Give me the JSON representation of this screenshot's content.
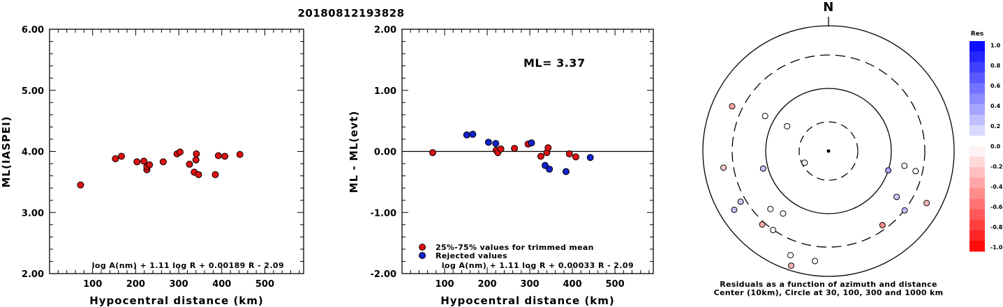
{
  "title": "20180812193828",
  "chart_data": [
    {
      "type": "scatter",
      "xlabel": "Hypocentral distance (km)",
      "ylabel": "ML(IASPEI)",
      "xlim": [
        0,
        590
      ],
      "ylim": [
        2.0,
        6.0
      ],
      "x_ticks": [
        "100",
        "200",
        "300",
        "400",
        "500"
      ],
      "y_ticks": [
        "2.00",
        "3.00",
        "4.00",
        "5.00",
        "6.00"
      ],
      "formula": "log A(nm) + 1.11 log R + 0.00189 R - 2.09",
      "points": [
        {
          "x": 72,
          "y": 3.45
        },
        {
          "x": 153,
          "y": 3.88
        },
        {
          "x": 167,
          "y": 3.92
        },
        {
          "x": 203,
          "y": 3.83
        },
        {
          "x": 219,
          "y": 3.84
        },
        {
          "x": 226,
          "y": 3.7
        },
        {
          "x": 226,
          "y": 3.75
        },
        {
          "x": 232,
          "y": 3.78
        },
        {
          "x": 264,
          "y": 3.83
        },
        {
          "x": 296,
          "y": 3.96
        },
        {
          "x": 303,
          "y": 3.99
        },
        {
          "x": 325,
          "y": 3.79
        },
        {
          "x": 336,
          "y": 3.66
        },
        {
          "x": 340,
          "y": 3.86
        },
        {
          "x": 341,
          "y": 3.96
        },
        {
          "x": 346,
          "y": 3.62
        },
        {
          "x": 385,
          "y": 3.62
        },
        {
          "x": 392,
          "y": 3.93
        },
        {
          "x": 407,
          "y": 3.92
        },
        {
          "x": 442,
          "y": 3.95
        }
      ]
    },
    {
      "type": "scatter",
      "xlabel": "Hypocentral distance (km)",
      "ylabel": "ML - ML(evt)",
      "xlim": [
        0,
        590
      ],
      "ylim": [
        -2.0,
        2.0
      ],
      "x_ticks": [
        "100",
        "200",
        "300",
        "400",
        "500"
      ],
      "y_ticks": [
        "-2.00",
        "-1.00",
        "0.00",
        "1.00",
        "2.00"
      ],
      "annotation": "ML= 3.37",
      "formula": "log A(nm) + 1.11 log R + 0.00033 R - 2.09",
      "legend": [
        {
          "label": "25%-75% values for trimmed mean",
          "color": "#dd1111"
        },
        {
          "label": "Rejected values",
          "color": "#1122cc"
        }
      ],
      "series": [
        {
          "name": "25%-75% values for trimmed mean",
          "color": "#dd1111",
          "points": [
            {
              "x": 72,
              "y": -0.02
            },
            {
              "x": 221,
              "y": 0.02
            },
            {
              "x": 225,
              "y": -0.02
            },
            {
              "x": 232,
              "y": 0.04
            },
            {
              "x": 264,
              "y": 0.05
            },
            {
              "x": 296,
              "y": 0.12
            },
            {
              "x": 326,
              "y": -0.08
            },
            {
              "x": 340,
              "y": -0.02
            },
            {
              "x": 343,
              "y": 0.06
            },
            {
              "x": 393,
              "y": -0.04
            },
            {
              "x": 408,
              "y": -0.09
            }
          ]
        },
        {
          "name": "Rejected values",
          "color": "#1122cc",
          "points": [
            {
              "x": 152,
              "y": 0.27
            },
            {
              "x": 166,
              "y": 0.28
            },
            {
              "x": 203,
              "y": 0.15
            },
            {
              "x": 220,
              "y": 0.13
            },
            {
              "x": 304,
              "y": 0.14
            },
            {
              "x": 336,
              "y": -0.23
            },
            {
              "x": 346,
              "y": -0.29
            },
            {
              "x": 385,
              "y": -0.33
            },
            {
              "x": 442,
              "y": -0.1
            }
          ]
        }
      ]
    },
    {
      "type": "scatter",
      "title": "N",
      "caption_line1": "Residuals as a function of azimuth and distance",
      "caption_line2": "Center (10km), Circle at 30, 100, 300 and 1000 km",
      "colorbar_title": "Res",
      "colorbar_ticks": [
        "1.0",
        "0.8",
        "0.6",
        "0.4",
        "0.2",
        "0.0",
        "-0.2",
        "-0.4",
        "-0.6",
        "-0.8",
        "-1.0"
      ],
      "points": [
        {
          "azimuth": 299,
          "distance": 150,
          "residual": 0.0
        },
        {
          "azimuth": 301,
          "distance": 100,
          "residual": 0.0
        },
        {
          "azimuth": 295,
          "distance": 220,
          "residual": -0.35
        },
        {
          "azimuth": 261,
          "distance": 220,
          "residual": -0.2
        },
        {
          "azimuth": 255,
          "distance": 140,
          "residual": 0.25
        },
        {
          "azimuth": 244,
          "distance": 55,
          "residual": 0.0
        },
        {
          "azimuth": 240,
          "distance": 210,
          "residual": 0.2
        },
        {
          "azimuth": 238,
          "distance": 230,
          "residual": 0.25
        },
        {
          "azimuth": 225,
          "distance": 170,
          "residual": 0.0
        },
        {
          "azimuth": 222,
          "distance": 205,
          "residual": -0.35
        },
        {
          "azimuth": 216,
          "distance": 160,
          "residual": 0.0
        },
        {
          "azimuth": 215,
          "distance": 200,
          "residual": 0.0
        },
        {
          "azimuth": 200,
          "distance": 230,
          "residual": 0.0
        },
        {
          "azimuth": 198,
          "distance": 250,
          "residual": -0.3
        },
        {
          "azimuth": 187,
          "distance": 230,
          "residual": 0.0
        },
        {
          "azimuth": 144,
          "distance": 190,
          "residual": -0.45
        },
        {
          "azimuth": 128,
          "distance": 200,
          "residual": 0.25
        },
        {
          "azimuth": 124,
          "distance": 170,
          "residual": 0.2
        },
        {
          "azimuth": 118,
          "distance": 230,
          "residual": -0.3
        },
        {
          "azimuth": 108,
          "distance": 130,
          "residual": 0.35
        },
        {
          "azimuth": 103,
          "distance": 185,
          "residual": 0.0
        },
        {
          "azimuth": 101,
          "distance": 160,
          "residual": 0.0
        }
      ]
    }
  ]
}
